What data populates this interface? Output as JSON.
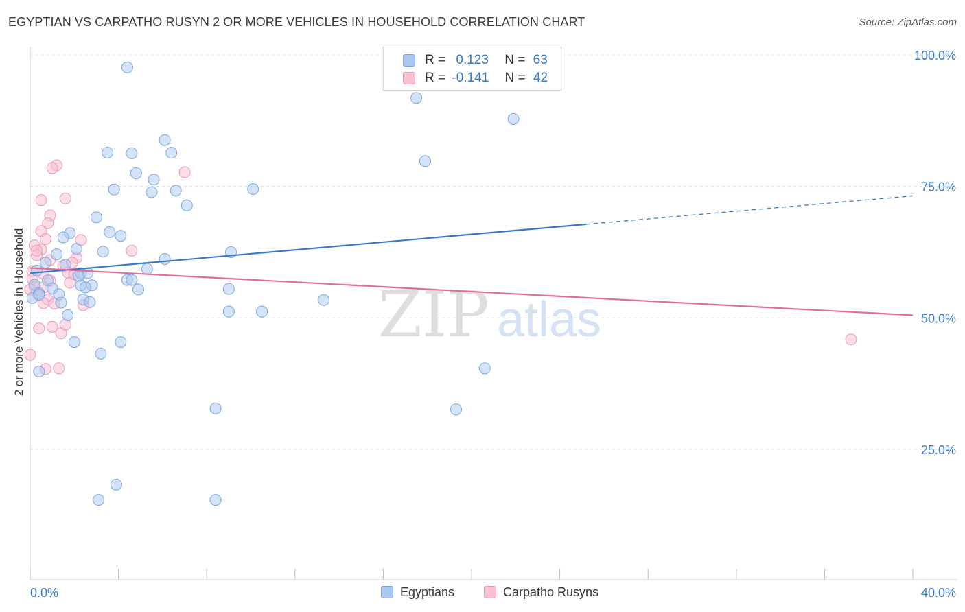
{
  "title": "EGYPTIAN VS CARPATHO RUSYN 2 OR MORE VEHICLES IN HOUSEHOLD CORRELATION CHART",
  "source": "Source: ZipAtlas.com",
  "watermark": {
    "zip": "ZIP",
    "atlas": "atlas"
  },
  "legend": {
    "rows": [
      {
        "r_label": "R =",
        "r_value": "0.123",
        "n_label": "N =",
        "n_value": "63"
      },
      {
        "r_label": "R =",
        "r_value": "-0.141",
        "n_label": "N =",
        "n_value": "42"
      }
    ]
  },
  "bottom_legend": [
    "Egyptians",
    "Carpatho Rusyns"
  ],
  "colors": {
    "blue": "#3a78c9",
    "blue_fill": "#a9c7ef",
    "blue_stroke": "#7aa6de",
    "pink": "#e26d98",
    "pink_fill": "#f6c1d3",
    "pink_stroke": "#ee97b6",
    "axis_text": "#3a78c9"
  },
  "chart_data": {
    "type": "scatter",
    "title": "EGYPTIAN VS CARPATHO RUSYN 2 OR MORE VEHICLES IN HOUSEHOLD CORRELATION CHART",
    "xlabel": "",
    "ylabel": "2 or more Vehicles in Household",
    "xlim": [
      0,
      40
    ],
    "ylim": [
      0,
      105
    ],
    "x_tick_labels": [
      "0.0%",
      "40.0%"
    ],
    "y_ticks": [
      25,
      50,
      75,
      100
    ],
    "y_tick_labels": [
      "25.0%",
      "50.0%",
      "75.0%",
      "100.0%"
    ],
    "grid": true,
    "series": [
      {
        "name": "Egyptians",
        "r": 0.123,
        "n": 63,
        "trend": {
          "x0": 0,
          "y0": 58.5,
          "x1": 25.2,
          "y1": 67.8,
          "dash_x1": 40,
          "dash_y1": 73.2
        },
        "points": [
          [
            4.4,
            97.6
          ],
          [
            17.5,
            91.8
          ],
          [
            21.9,
            87.8
          ],
          [
            17.9,
            79.8
          ],
          [
            3.5,
            81.4
          ],
          [
            4.6,
            81.3
          ],
          [
            6.1,
            83.8
          ],
          [
            6.4,
            81.4
          ],
          [
            4.8,
            77.5
          ],
          [
            5.6,
            76.3
          ],
          [
            3.8,
            74.4
          ],
          [
            5.5,
            73.9
          ],
          [
            6.6,
            74.2
          ],
          [
            10.1,
            74.5
          ],
          [
            7.1,
            71.4
          ],
          [
            3.0,
            69.1
          ],
          [
            1.8,
            66.1
          ],
          [
            3.6,
            66.3
          ],
          [
            4.1,
            65.6
          ],
          [
            1.5,
            65.3
          ],
          [
            2.1,
            63.1
          ],
          [
            3.3,
            62.6
          ],
          [
            9.1,
            62.5
          ],
          [
            1.2,
            62.1
          ],
          [
            6.1,
            61.2
          ],
          [
            0.7,
            60.5
          ],
          [
            5.3,
            59.3
          ],
          [
            0.3,
            59.0
          ],
          [
            2.3,
            58.5
          ],
          [
            2.6,
            58.5
          ],
          [
            0.8,
            57.1
          ],
          [
            4.4,
            57.2
          ],
          [
            4.6,
            57.2
          ],
          [
            0.2,
            56.3
          ],
          [
            2.3,
            56.2
          ],
          [
            2.8,
            56.2
          ],
          [
            1.0,
            55.6
          ],
          [
            2.5,
            55.8
          ],
          [
            4.9,
            55.4
          ],
          [
            9.0,
            55.5
          ],
          [
            0.4,
            54.7
          ],
          [
            1.3,
            54.5
          ],
          [
            0.1,
            53.8
          ],
          [
            2.4,
            53.5
          ],
          [
            2.7,
            53.0
          ],
          [
            1.4,
            52.9
          ],
          [
            13.3,
            53.4
          ],
          [
            9.0,
            51.2
          ],
          [
            10.5,
            51.2
          ],
          [
            1.7,
            50.5
          ],
          [
            2.0,
            45.4
          ],
          [
            4.1,
            45.4
          ],
          [
            3.2,
            43.2
          ],
          [
            20.6,
            40.4
          ],
          [
            0.4,
            39.8
          ],
          [
            8.4,
            32.8
          ],
          [
            19.3,
            32.6
          ],
          [
            3.9,
            18.3
          ],
          [
            3.1,
            15.4
          ],
          [
            8.4,
            15.4
          ],
          [
            0.4,
            54.4
          ],
          [
            2.2,
            58.0
          ],
          [
            1.6,
            60.1
          ]
        ]
      },
      {
        "name": "Carpatho Rusyns",
        "r": -0.141,
        "n": 42,
        "trend": {
          "x0": 0,
          "y0": 59.5,
          "x1": 40,
          "y1": 50.5
        },
        "points": [
          [
            1.2,
            79.0
          ],
          [
            1.0,
            78.5
          ],
          [
            7.0,
            77.7
          ],
          [
            0.5,
            72.4
          ],
          [
            1.6,
            72.7
          ],
          [
            0.9,
            69.5
          ],
          [
            0.8,
            68.0
          ],
          [
            0.5,
            66.5
          ],
          [
            0.7,
            65.0
          ],
          [
            2.3,
            64.8
          ],
          [
            0.2,
            63.8
          ],
          [
            0.5,
            63.0
          ],
          [
            4.6,
            62.8
          ],
          [
            0.3,
            61.9
          ],
          [
            2.1,
            61.4
          ],
          [
            0.9,
            61.0
          ],
          [
            1.5,
            59.9
          ],
          [
            0.1,
            58.9
          ],
          [
            0.6,
            58.4
          ],
          [
            1.7,
            58.6
          ],
          [
            0.1,
            57.4
          ],
          [
            0.9,
            57.1
          ],
          [
            1.8,
            56.7
          ],
          [
            0.2,
            55.9
          ],
          [
            0.6,
            55.8
          ],
          [
            0.0,
            55.4
          ],
          [
            0.3,
            54.8
          ],
          [
            0.8,
            53.5
          ],
          [
            0.6,
            52.8
          ],
          [
            1.1,
            52.7
          ],
          [
            2.4,
            52.4
          ],
          [
            1.0,
            48.3
          ],
          [
            0.4,
            48.0
          ],
          [
            1.4,
            47.1
          ],
          [
            37.2,
            45.9
          ],
          [
            0.0,
            43.0
          ],
          [
            0.7,
            40.3
          ],
          [
            1.3,
            40.4
          ],
          [
            1.6,
            48.7
          ],
          [
            1.9,
            60.5
          ],
          [
            2.0,
            58.3
          ],
          [
            0.3,
            62.8
          ]
        ]
      }
    ]
  }
}
